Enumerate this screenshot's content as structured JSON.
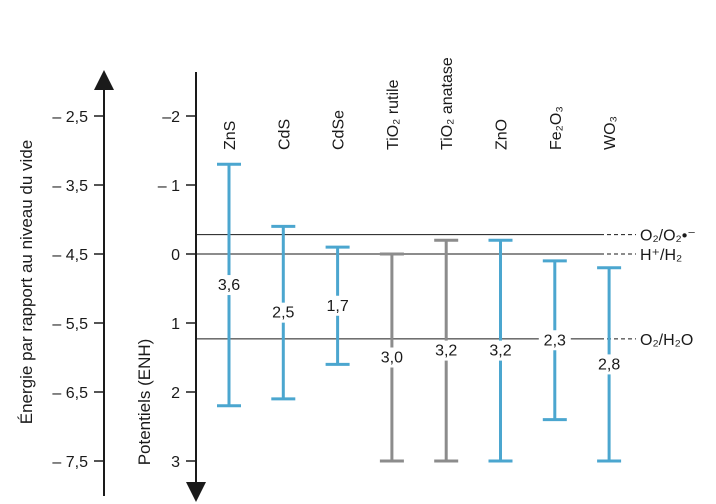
{
  "chart_data": {
    "type": "band-diagram",
    "left_axis": {
      "label": "Énergie par rapport au niveau du vide",
      "ticks": [
        "– 2,5",
        "– 3,5",
        "– 4,5",
        "– 5,5",
        "– 6,5",
        "– 7,5"
      ],
      "tick_values": [
        -2.5,
        -3.5,
        -4.5,
        -5.5,
        -6.5,
        -7.5
      ]
    },
    "right_axis": {
      "label": "Potentiels (ENH)",
      "ticks": [
        "–2",
        "– 1",
        "0",
        "1",
        "2",
        "3"
      ],
      "tick_values": [
        -2,
        -1,
        0,
        1,
        2,
        3
      ]
    },
    "materials": [
      {
        "name": "ZnS",
        "cb": -1.3,
        "vb": 2.2,
        "gap_label": "3,6",
        "color": "#4ba6cf"
      },
      {
        "name": "CdS",
        "cb": -0.4,
        "vb": 2.1,
        "gap_label": "2,5",
        "color": "#4ba6cf"
      },
      {
        "name": "CdSe",
        "cb": -0.1,
        "vb": 1.6,
        "gap_label": "1,7",
        "color": "#4ba6cf"
      },
      {
        "name": "TiO₂ rutile",
        "cb": 0.0,
        "vb": 3.0,
        "gap_label": "3,0",
        "color": "#8c8c8c"
      },
      {
        "name": "TiO₂ anatase",
        "cb": -0.2,
        "vb": 3.0,
        "gap_label": "3,2",
        "color": "#8c8c8c"
      },
      {
        "name": "ZnO",
        "cb": -0.2,
        "vb": 3.0,
        "gap_label": "3,2",
        "color": "#4ba6cf"
      },
      {
        "name": "Fe₂O₃",
        "cb": 0.1,
        "vb": 2.4,
        "gap_label": "2,3",
        "color": "#4ba6cf"
      },
      {
        "name": "WO₃",
        "cb": 0.2,
        "vb": 3.0,
        "gap_label": "2,8",
        "color": "#4ba6cf"
      }
    ],
    "reference_levels": [
      {
        "label": "O₂/O₂•⁻",
        "value": -0.28
      },
      {
        "label": "H⁺/H₂",
        "value": 0.0
      },
      {
        "label": "O₂/H₂O",
        "value": 1.23
      }
    ]
  }
}
